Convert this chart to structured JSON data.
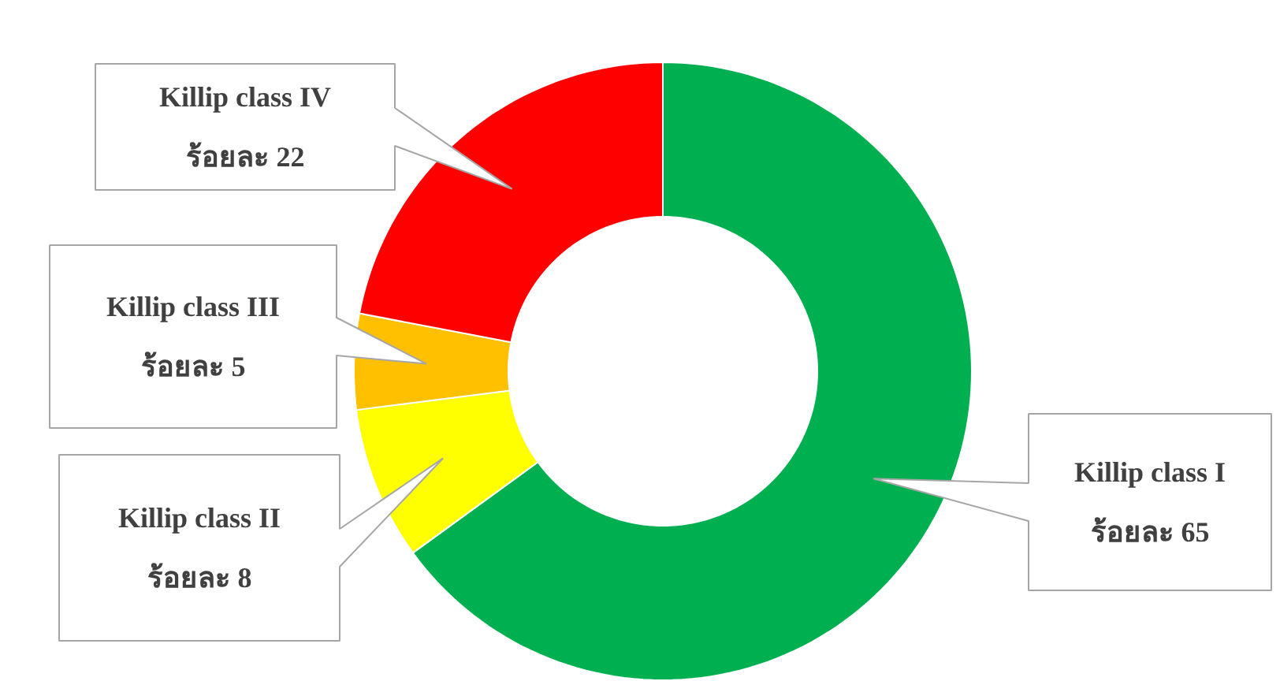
{
  "chart_data": {
    "type": "donut",
    "categories": [
      "Killip class I",
      "Killip class II",
      "Killip class III",
      "Killip class IV"
    ],
    "values": [
      65,
      8,
      5,
      22
    ],
    "colors": [
      "#00b050",
      "#ffff00",
      "#ffc000",
      "#ff0000"
    ],
    "value_labels": [
      "ร้อยละ 65",
      "ร้อยละ 8",
      "ร้อยละ 5",
      "ร้อยละ 22"
    ],
    "legend": false
  }
}
